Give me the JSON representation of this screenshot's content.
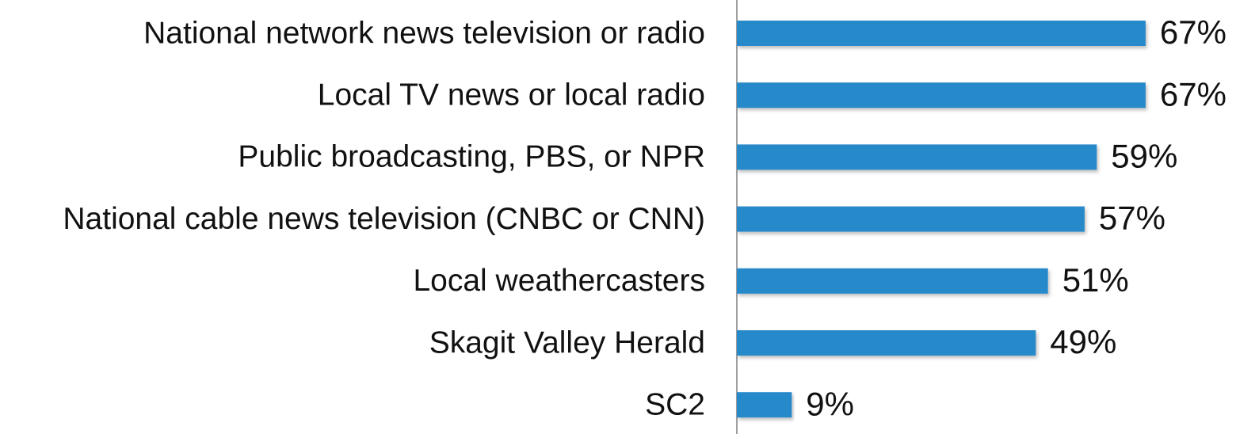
{
  "chart_data": {
    "type": "bar",
    "orientation": "horizontal",
    "categories": [
      "National network news television or radio",
      "Local TV news or local radio",
      "Public broadcasting, PBS, or NPR",
      "National cable news television (CNBC or CNN)",
      "Local weathercasters",
      "Skagit Valley Herald",
      "SC2"
    ],
    "values": [
      67,
      67,
      59,
      57,
      51,
      49,
      9
    ],
    "value_labels": [
      "67%",
      "67%",
      "59%",
      "57%",
      "51%",
      "49%",
      "9%"
    ],
    "color": "#2589c9"
  }
}
